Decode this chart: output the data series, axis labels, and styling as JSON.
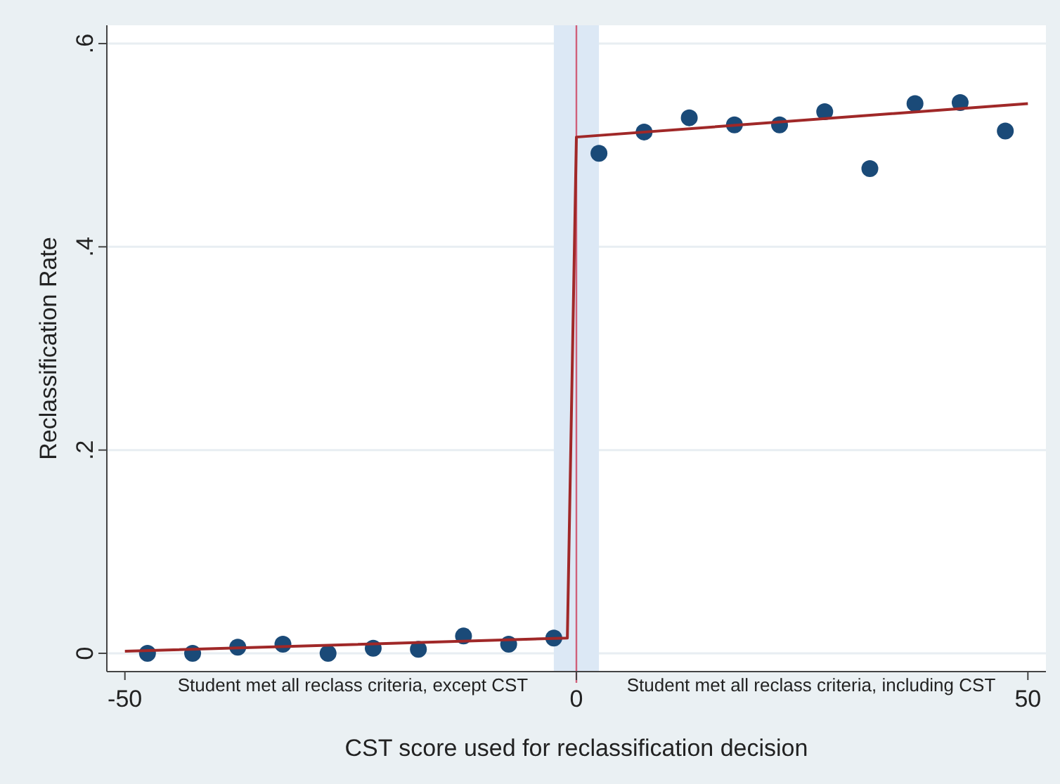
{
  "chart_data": {
    "type": "scatter",
    "xlabel": "CST score used for reclassification decision",
    "ylabel": "Reclassification Rate",
    "x": [
      -47.5,
      -42.5,
      -37.5,
      -32.5,
      -27.5,
      -22.5,
      -17.5,
      -12.5,
      -7.5,
      -2.5,
      2.5,
      7.5,
      12.5,
      17.5,
      22.5,
      27.5,
      32.5,
      37.5,
      42.5,
      47.5
    ],
    "series": [
      {
        "color": "#1a4a78",
        "marker": "circle",
        "values": [
          0,
          0,
          0.006,
          0.009,
          0,
          0.005,
          0.004,
          0.017,
          0.009,
          0.015,
          0.492,
          0.513,
          0.527,
          0.52,
          0.52,
          0.533,
          0.477,
          0.541,
          0.542,
          0.514
        ]
      },
      {
        "type": "line",
        "color": "#a02828",
        "line_style": "solid",
        "x": [
          -50,
          -1,
          0,
          50
        ],
        "values": [
          0.002,
          0.015,
          0.508,
          0.541
        ]
      }
    ],
    "xlim": [
      -52,
      52
    ],
    "xticks": [
      -50,
      0,
      50
    ],
    "ylim": [
      -0.018,
      0.618
    ],
    "yticks": [
      {
        "value": 0,
        "label": "0"
      },
      {
        "value": 0.2,
        "label": ".2"
      },
      {
        "value": 0.4,
        "label": ".4"
      },
      {
        "value": 0.6,
        "label": ".6"
      }
    ],
    "grid": "y",
    "ref_lines": [
      {
        "axis": "x",
        "value": 0,
        "color": "#d0607a"
      }
    ],
    "bands": [
      {
        "axis": "x",
        "from": -2.5,
        "to": 2.5,
        "color": "#dce8f5"
      }
    ],
    "annotations": [
      "Student met all reclass criteria, except CST",
      "Student met all reclass criteria, including CST"
    ]
  }
}
